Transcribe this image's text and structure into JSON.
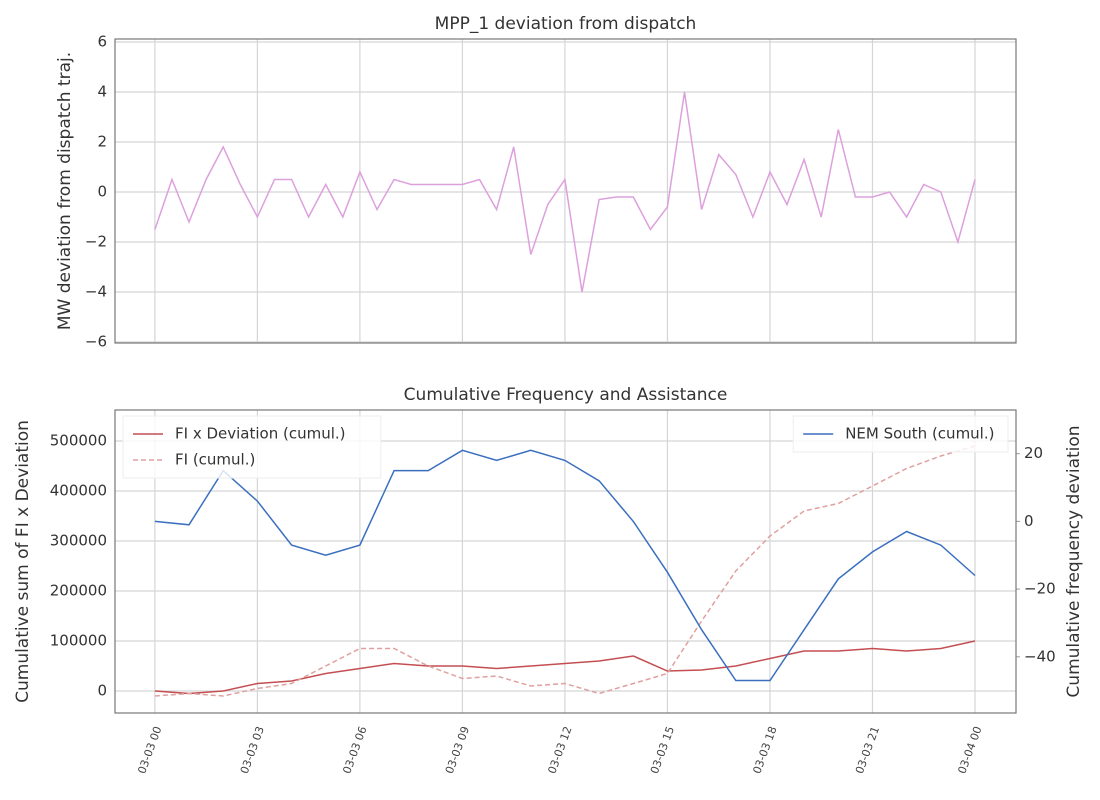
{
  "chart_data": [
    {
      "type": "line",
      "title": "MPP_1 deviation from dispatch",
      "ylabel": "MW deviation from dispatch traj.",
      "x": [
        "03-03 00:00",
        "03-03 00:30",
        "03-03 01:00",
        "03-03 01:30",
        "03-03 02:00",
        "03-03 02:30",
        "03-03 03:00",
        "03-03 03:30",
        "03-03 04:00",
        "03-03 04:30",
        "03-03 05:00",
        "03-03 05:30",
        "03-03 06:00",
        "03-03 06:30",
        "03-03 07:00",
        "03-03 07:30",
        "03-03 08:00",
        "03-03 08:30",
        "03-03 09:00",
        "03-03 09:30",
        "03-03 10:00",
        "03-03 10:30",
        "03-03 11:00",
        "03-03 11:30",
        "03-03 12:00",
        "03-03 12:30",
        "03-03 13:00",
        "03-03 13:30",
        "03-03 14:00",
        "03-03 14:30",
        "03-03 15:00",
        "03-03 15:30",
        "03-03 16:00",
        "03-03 16:30",
        "03-03 17:00",
        "03-03 17:30",
        "03-03 18:00",
        "03-03 18:30",
        "03-03 19:00",
        "03-03 19:30",
        "03-03 20:00",
        "03-03 20:30",
        "03-03 21:00",
        "03-03 21:30",
        "03-03 22:00",
        "03-03 22:30",
        "03-03 23:00",
        "03-03 23:30",
        "03-04 00:00"
      ],
      "series": [
        {
          "name": "MPP_1",
          "color": "#dda0dd",
          "values": [
            -1.5,
            0.5,
            -1.2,
            0.5,
            1.8,
            0.3,
            -1.0,
            0.5,
            0.5,
            -1.0,
            0.3,
            -1.0,
            0.8,
            -0.7,
            0.5,
            0.3,
            0.3,
            0.3,
            0.3,
            0.5,
            -0.7,
            1.8,
            -2.5,
            -0.5,
            0.5,
            -4.0,
            -0.3,
            -0.2,
            -0.2,
            -1.5,
            -0.6,
            4.0,
            -0.7,
            1.5,
            0.7,
            -1.0,
            0.8,
            -0.5,
            1.3,
            -1.0,
            2.5,
            -0.2,
            -0.2,
            0.0,
            -1.0,
            0.3,
            0.0,
            -2.0,
            0.5
          ]
        }
      ],
      "xlim": [
        "03-02 22:50",
        "03-04 01:12"
      ],
      "xticks": [
        "03-03 00:00",
        "03-03 03:00",
        "03-03 06:00",
        "03-03 09:00",
        "03-03 12:00",
        "03-03 15:00",
        "03-03 18:00",
        "03-03 21:00",
        "03-04 00:00"
      ],
      "ylim": [
        -6.04,
        6.12
      ],
      "yticks": [
        {
          "value": -6,
          "label": "−6"
        },
        {
          "value": -4,
          "label": "−4"
        },
        {
          "value": -2,
          "label": "−2"
        },
        0,
        2,
        4,
        6
      ],
      "grid": true
    },
    {
      "type": "line",
      "title": "Cumulative Frequency and Assistance",
      "ylabel": "Cumulative sum of FI x Deviation",
      "y2label": "Cumulative frequency deviation",
      "x": [
        "03-03 00:00",
        "03-03 01:00",
        "03-03 02:00",
        "03-03 03:00",
        "03-03 04:00",
        "03-03 05:00",
        "03-03 06:00",
        "03-03 07:00",
        "03-03 08:00",
        "03-03 09:00",
        "03-03 10:00",
        "03-03 11:00",
        "03-03 12:00",
        "03-03 13:00",
        "03-03 14:00",
        "03-03 15:00",
        "03-03 16:00",
        "03-03 17:00",
        "03-03 18:00",
        "03-03 19:00",
        "03-03 20:00",
        "03-03 21:00",
        "03-03 22:00",
        "03-03 23:00",
        "03-04 00:00"
      ],
      "series": [
        {
          "name": "FI x Deviation (cumul.)",
          "color": "#c44e52",
          "values": [
            0,
            -5000,
            0,
            15000,
            20000,
            35000,
            45000,
            55000,
            50000,
            50000,
            45000,
            50000,
            55000,
            60000,
            70000,
            40000,
            42000,
            50000,
            65000,
            80000,
            80000,
            85000,
            80000,
            85000,
            100000
          ]
        },
        {
          "name": "FI (cumul.)",
          "color": "#e0a0a0",
          "linestyle": "dashed",
          "values": [
            -10000,
            -5000,
            -10000,
            5000,
            15000,
            50000,
            85000,
            85000,
            50000,
            25000,
            30000,
            10000,
            15000,
            -5000,
            15000,
            35000,
            140000,
            240000,
            310000,
            360000,
            375000,
            410000,
            445000,
            470000,
            490000
          ]
        },
        {
          "name": "NEM South (cumul.)",
          "color": "#3a6fbf",
          "axis": "y2",
          "values": [
            0,
            -1,
            15,
            6,
            -7,
            -10,
            -7,
            15,
            15,
            21,
            18,
            21,
            18,
            12,
            0,
            -15,
            -32,
            -47,
            -47,
            -32,
            -17,
            -9,
            -3,
            -7,
            -16
          ]
        }
      ],
      "xlim": [
        "03-02 22:50",
        "03-04 01:12"
      ],
      "xticks": [
        {
          "value": "03-03 00:00",
          "label": "03-03 00"
        },
        {
          "value": "03-03 03:00",
          "label": "03-03 03"
        },
        {
          "value": "03-03 06:00",
          "label": "03-03 06"
        },
        {
          "value": "03-03 09:00",
          "label": "03-03 09"
        },
        {
          "value": "03-03 12:00",
          "label": "03-03 12"
        },
        {
          "value": "03-03 15:00",
          "label": "03-03 15"
        },
        {
          "value": "03-03 18:00",
          "label": "03-03 18"
        },
        {
          "value": "03-03 21:00",
          "label": "03-03 21"
        },
        {
          "value": "03-04 00:00",
          "label": "03-04 00"
        }
      ],
      "ylim": [
        -44000,
        562000
      ],
      "yticks": [
        0,
        100000,
        200000,
        300000,
        400000,
        500000
      ],
      "y2lim": [
        -56.6,
        32.9
      ],
      "y2ticks": [
        {
          "value": -40,
          "label": "−40"
        },
        {
          "value": -20,
          "label": "−20"
        },
        0,
        20
      ],
      "legend": "upper left",
      "legend2": "upper right",
      "grid": true
    }
  ]
}
